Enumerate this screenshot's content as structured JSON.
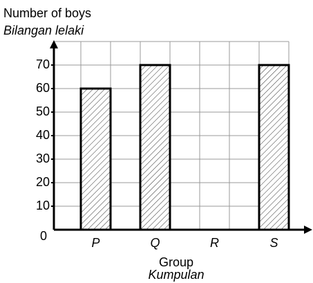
{
  "chart_data": {
    "type": "bar",
    "y_label": "Number of boys",
    "y_label_alt": "Bilangan lelaki",
    "x_label": "Group",
    "x_label_alt": "Kumpulan",
    "categories": [
      "P",
      "Q",
      "R",
      "S"
    ],
    "values": [
      60,
      70,
      null,
      70
    ],
    "ylim": [
      0,
      80
    ],
    "yticks": [
      0,
      10,
      20,
      30,
      40,
      50,
      60,
      70
    ],
    "grid": true,
    "color": "#ffffff"
  }
}
